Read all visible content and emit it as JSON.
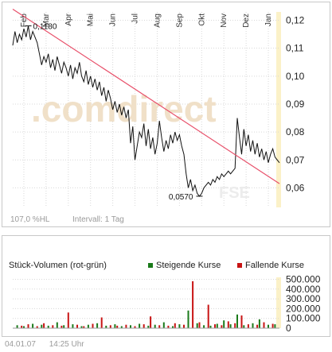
{
  "chart_data": [
    {
      "type": "line",
      "title": "",
      "x_months": [
        "Feb",
        "Mar",
        "Apr",
        "Mai",
        "Jun",
        "Jul",
        "Aug",
        "Sep",
        "Okt",
        "Nov",
        "Dez",
        "Jan"
      ],
      "y_ticks": [
        "0,12",
        "0,11",
        "0,10",
        "0,09",
        "0,08",
        "0,07",
        "0,06"
      ],
      "ylim": [
        0.053,
        0.123
      ],
      "high_label": "0,1180",
      "low_label": "0,0570",
      "watermark": ".comdirect",
      "watermark2": "FSE",
      "perf_label": "107,0 %HL",
      "interval_label": "Intervall: 1 Tag",
      "trendline": {
        "from": [
          0,
          0.124
        ],
        "to": [
          12,
          0.0615
        ]
      },
      "series": [
        {
          "points": [
            [
              0.0,
              0.111
            ],
            [
              0.1,
              0.116
            ],
            [
              0.2,
              0.112
            ],
            [
              0.3,
              0.115
            ],
            [
              0.4,
              0.113
            ],
            [
              0.5,
              0.117
            ],
            [
              0.6,
              0.114
            ],
            [
              0.7,
              0.118
            ],
            [
              0.8,
              0.113
            ],
            [
              0.9,
              0.116
            ],
            [
              1.0,
              0.114
            ],
            [
              1.1,
              0.112
            ],
            [
              1.2,
              0.108
            ],
            [
              1.3,
              0.104
            ],
            [
              1.4,
              0.107
            ],
            [
              1.5,
              0.105
            ],
            [
              1.6,
              0.108
            ],
            [
              1.7,
              0.103
            ],
            [
              1.8,
              0.106
            ],
            [
              1.9,
              0.102
            ],
            [
              2.0,
              0.107
            ],
            [
              2.1,
              0.104
            ],
            [
              2.2,
              0.101
            ],
            [
              2.3,
              0.105
            ],
            [
              2.4,
              0.103
            ],
            [
              2.5,
              0.1
            ],
            [
              2.6,
              0.104
            ],
            [
              2.7,
              0.099
            ],
            [
              2.8,
              0.103
            ],
            [
              2.9,
              0.101
            ],
            [
              3.0,
              0.105
            ],
            [
              3.1,
              0.1
            ],
            [
              3.2,
              0.098
            ],
            [
              3.3,
              0.102
            ],
            [
              3.4,
              0.097
            ],
            [
              3.5,
              0.1
            ],
            [
              3.6,
              0.096
            ],
            [
              3.7,
              0.099
            ],
            [
              3.8,
              0.095
            ],
            [
              3.9,
              0.098
            ],
            [
              4.0,
              0.093
            ],
            [
              4.1,
              0.096
            ],
            [
              4.2,
              0.091
            ],
            [
              4.3,
              0.095
            ],
            [
              4.4,
              0.092
            ],
            [
              4.5,
              0.088
            ],
            [
              4.6,
              0.091
            ],
            [
              4.7,
              0.087
            ],
            [
              4.8,
              0.09
            ],
            [
              4.9,
              0.086
            ],
            [
              5.0,
              0.089
            ],
            [
              5.1,
              0.085
            ],
            [
              5.2,
              0.088
            ],
            [
              5.3,
              0.076
            ],
            [
              5.4,
              0.082
            ],
            [
              5.5,
              0.07
            ],
            [
              5.6,
              0.075
            ],
            [
              5.7,
              0.08
            ],
            [
              5.8,
              0.078
            ],
            [
              5.9,
              0.083
            ],
            [
              6.0,
              0.075
            ],
            [
              6.1,
              0.081
            ],
            [
              6.2,
              0.074
            ],
            [
              6.3,
              0.078
            ],
            [
              6.4,
              0.072
            ],
            [
              6.5,
              0.076
            ],
            [
              6.6,
              0.084
            ],
            [
              6.7,
              0.078
            ],
            [
              6.8,
              0.073
            ],
            [
              6.9,
              0.077
            ],
            [
              7.0,
              0.074
            ],
            [
              7.1,
              0.079
            ],
            [
              7.2,
              0.076
            ],
            [
              7.3,
              0.08
            ],
            [
              7.4,
              0.077
            ],
            [
              7.5,
              0.079
            ],
            [
              7.6,
              0.075
            ],
            [
              7.7,
              0.072
            ],
            [
              7.8,
              0.065
            ],
            [
              7.9,
              0.06
            ],
            [
              8.0,
              0.063
            ],
            [
              8.1,
              0.059
            ],
            [
              8.2,
              0.061
            ],
            [
              8.3,
              0.058
            ],
            [
              8.4,
              0.057
            ],
            [
              8.5,
              0.058
            ],
            [
              8.6,
              0.06
            ],
            [
              8.7,
              0.061
            ],
            [
              8.8,
              0.062
            ],
            [
              8.9,
              0.061
            ],
            [
              9.0,
              0.063
            ],
            [
              9.1,
              0.062
            ],
            [
              9.2,
              0.064
            ],
            [
              9.3,
              0.063
            ],
            [
              9.4,
              0.065
            ],
            [
              9.5,
              0.064
            ],
            [
              9.6,
              0.065
            ],
            [
              9.7,
              0.066
            ],
            [
              9.8,
              0.065
            ],
            [
              9.9,
              0.066
            ],
            [
              10.0,
              0.067
            ],
            [
              10.1,
              0.085
            ],
            [
              10.2,
              0.078
            ],
            [
              10.3,
              0.072
            ],
            [
              10.4,
              0.081
            ],
            [
              10.5,
              0.075
            ],
            [
              10.6,
              0.079
            ],
            [
              10.7,
              0.073
            ],
            [
              10.8,
              0.077
            ],
            [
              10.9,
              0.072
            ],
            [
              11.0,
              0.076
            ],
            [
              11.1,
              0.071
            ],
            [
              11.2,
              0.074
            ],
            [
              11.3,
              0.07
            ],
            [
              11.4,
              0.073
            ],
            [
              11.5,
              0.069
            ],
            [
              11.6,
              0.072
            ],
            [
              11.7,
              0.074
            ],
            [
              11.8,
              0.071
            ],
            [
              11.9,
              0.07
            ],
            [
              12.0,
              0.069
            ]
          ]
        }
      ]
    },
    {
      "type": "bar",
      "title": "Stück-Volumen (rot-grün)",
      "y_ticks": [
        "500.000",
        "400.000",
        "300.000",
        "200.000",
        "100.000",
        "0"
      ],
      "ylim": [
        0,
        520000
      ],
      "series": [
        {
          "name": "Steigende Kurse",
          "color": "#1a7a1a",
          "x": [
            0.2,
            0.5,
            0.9,
            1.3,
            1.6,
            2.0,
            2.3,
            2.7,
            3.1,
            3.4,
            3.8,
            4.2,
            4.6,
            4.9,
            5.3,
            5.7,
            6.1,
            6.4,
            6.8,
            7.2,
            7.5,
            7.9,
            8.3,
            8.6,
            8.9,
            9.2,
            9.5,
            9.8,
            10.1,
            10.4,
            10.8,
            11.1,
            11.5,
            11.8
          ],
          "values": [
            30000,
            20000,
            45000,
            35000,
            25000,
            60000,
            30000,
            40000,
            20000,
            35000,
            50000,
            25000,
            40000,
            20000,
            30000,
            45000,
            25000,
            35000,
            60000,
            20000,
            40000,
            180000,
            50000,
            30000,
            25000,
            45000,
            80000,
            40000,
            140000,
            30000,
            50000,
            90000,
            35000,
            40000
          ]
        },
        {
          "name": "Fallende Kurse",
          "color": "#c81414",
          "x": [
            0.4,
            0.7,
            1.1,
            1.4,
            1.8,
            2.2,
            2.5,
            2.9,
            3.2,
            3.6,
            4.0,
            4.4,
            4.7,
            5.1,
            5.5,
            5.9,
            6.2,
            6.6,
            7.0,
            7.3,
            7.7,
            8.1,
            8.4,
            8.8,
            9.1,
            9.4,
            9.7,
            10.0,
            10.3,
            10.6,
            11.0,
            11.3,
            11.7
          ],
          "values": [
            25000,
            40000,
            20000,
            50000,
            30000,
            25000,
            160000,
            35000,
            20000,
            45000,
            110000,
            30000,
            25000,
            35000,
            20000,
            40000,
            120000,
            30000,
            25000,
            50000,
            35000,
            480000,
            60000,
            240000,
            40000,
            30000,
            70000,
            50000,
            130000,
            40000,
            35000,
            60000,
            45000
          ]
        }
      ]
    }
  ],
  "footer": {
    "date": "04.01.07",
    "time": "14:25 Uhr"
  }
}
